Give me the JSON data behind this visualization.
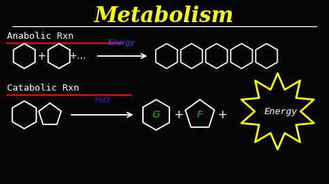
{
  "title": "Metabolism",
  "title_color": "#FFFF00",
  "title_fontsize": 22,
  "bg_color": "#050505",
  "white": "#FFFFFF",
  "red": "#CC1111",
  "cyan": "#2255FF",
  "blue": "#2233EE",
  "green": "#00CC00",
  "yellow": "#FFFF00",
  "anabolic_label": "Anabolic Rxn",
  "catabolic_label": "Catabolic Rxn",
  "energy_label": "Energy",
  "h2o_label": "H₂O",
  "g_label": "G",
  "f_label": "F",
  "energy2_label": "Energy"
}
